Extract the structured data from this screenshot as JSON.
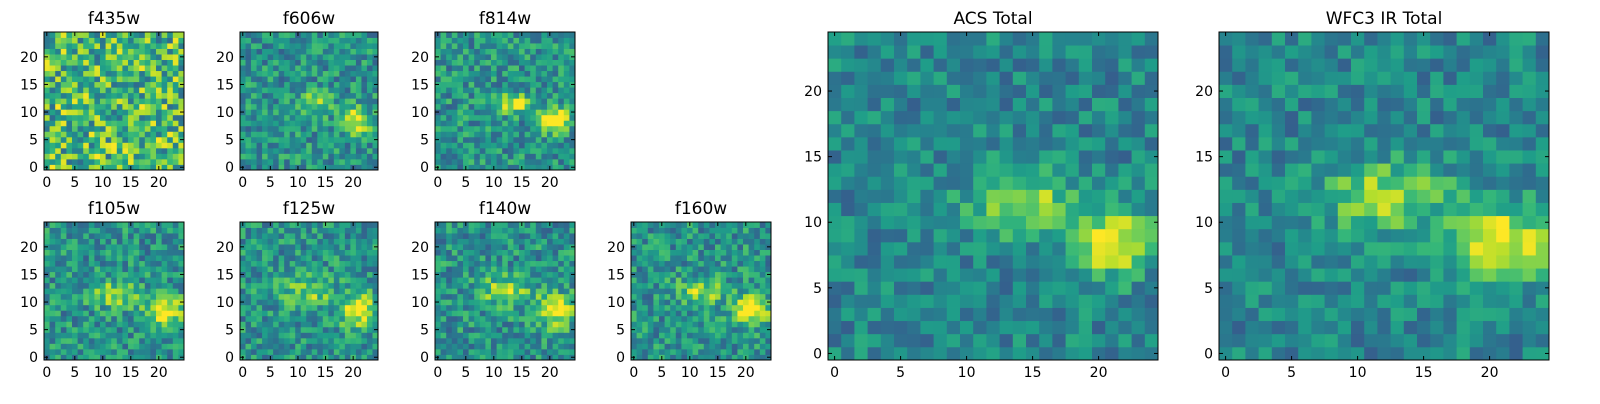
{
  "chart_data": [
    {
      "type": "heatmap",
      "title": "f435w",
      "grid": [
        25,
        25
      ],
      "xticks": [
        "0",
        "5",
        "10",
        "15",
        "20"
      ],
      "yticks": [
        "0",
        "5",
        "10",
        "15",
        "20"
      ],
      "colormap": "viridis",
      "features": []
    },
    {
      "type": "heatmap",
      "title": "f606w",
      "grid": [
        25,
        25
      ],
      "xticks": [
        "0",
        "5",
        "10",
        "15",
        "20"
      ],
      "yticks": [
        "0",
        "5",
        "10",
        "15",
        "20"
      ],
      "colormap": "viridis",
      "features": [
        {
          "x": 20.5,
          "y": 8.5,
          "sx": 1.7,
          "sy": 1.6,
          "amp": 0.55
        },
        {
          "x": 13,
          "y": 11.5,
          "sx": 2.5,
          "sy": 1.4,
          "amp": 0.3
        }
      ]
    },
    {
      "type": "heatmap",
      "title": "f814w",
      "grid": [
        25,
        25
      ],
      "xticks": [
        "0",
        "5",
        "10",
        "15",
        "20"
      ],
      "yticks": [
        "0",
        "5",
        "10",
        "15",
        "20"
      ],
      "colormap": "viridis",
      "features": [
        {
          "x": 21,
          "y": 8.5,
          "sx": 1.7,
          "sy": 1.5,
          "amp": 0.7
        },
        {
          "x": 13.5,
          "y": 11.5,
          "sx": 2.2,
          "sy": 1.2,
          "amp": 0.45
        }
      ]
    },
    {
      "type": "heatmap",
      "title": "f105w",
      "grid": [
        25,
        25
      ],
      "xticks": [
        "0",
        "5",
        "10",
        "15",
        "20"
      ],
      "yticks": [
        "0",
        "5",
        "10",
        "15",
        "20"
      ],
      "colormap": "viridis",
      "features": [
        {
          "x": 21,
          "y": 8.5,
          "sx": 2.4,
          "sy": 2.0,
          "amp": 0.5
        },
        {
          "x": 12,
          "y": 11.5,
          "sx": 3.0,
          "sy": 1.6,
          "amp": 0.35
        }
      ]
    },
    {
      "type": "heatmap",
      "title": "f125w",
      "grid": [
        25,
        25
      ],
      "xticks": [
        "0",
        "5",
        "10",
        "15",
        "20"
      ],
      "yticks": [
        "0",
        "5",
        "10",
        "15",
        "20"
      ],
      "colormap": "viridis",
      "features": [
        {
          "x": 21,
          "y": 8.5,
          "sx": 2.3,
          "sy": 2.0,
          "amp": 0.5
        },
        {
          "x": 12,
          "y": 12,
          "sx": 3.2,
          "sy": 1.8,
          "amp": 0.3
        }
      ]
    },
    {
      "type": "heatmap",
      "title": "f140w",
      "grid": [
        25,
        25
      ],
      "xticks": [
        "0",
        "5",
        "10",
        "15",
        "20"
      ],
      "yticks": [
        "0",
        "5",
        "10",
        "15",
        "20"
      ],
      "colormap": "viridis",
      "features": [
        {
          "x": 21,
          "y": 8.5,
          "sx": 2.4,
          "sy": 2.0,
          "amp": 0.5
        },
        {
          "x": 12,
          "y": 12,
          "sx": 3.2,
          "sy": 1.8,
          "amp": 0.35
        }
      ]
    },
    {
      "type": "heatmap",
      "title": "f160w",
      "grid": [
        25,
        25
      ],
      "xticks": [
        "0",
        "5",
        "10",
        "15",
        "20"
      ],
      "yticks": [
        "0",
        "5",
        "10",
        "15",
        "20"
      ],
      "colormap": "viridis",
      "features": [
        {
          "x": 21,
          "y": 8.5,
          "sx": 2.3,
          "sy": 1.9,
          "amp": 0.55
        },
        {
          "x": 12,
          "y": 12,
          "sx": 3.0,
          "sy": 1.6,
          "amp": 0.35
        }
      ]
    },
    {
      "type": "heatmap",
      "title": "ACS Total",
      "grid": [
        25,
        25
      ],
      "xticks": [
        "0",
        "5",
        "10",
        "15",
        "20"
      ],
      "yticks": [
        "0",
        "5",
        "10",
        "15",
        "20"
      ],
      "colormap": "viridis",
      "features": [
        {
          "x": 21,
          "y": 8.5,
          "sx": 1.9,
          "sy": 1.7,
          "amp": 0.6
        },
        {
          "x": 14,
          "y": 11.5,
          "sx": 2.6,
          "sy": 1.6,
          "amp": 0.45
        }
      ]
    },
    {
      "type": "heatmap",
      "title": "WFC3 IR Total",
      "grid": [
        25,
        25
      ],
      "xticks": [
        "0",
        "5",
        "10",
        "15",
        "20"
      ],
      "yticks": [
        "0",
        "5",
        "10",
        "15",
        "20"
      ],
      "colormap": "viridis",
      "features": [
        {
          "x": 21,
          "y": 8.5,
          "sx": 2.6,
          "sy": 2.0,
          "amp": 0.55
        },
        {
          "x": 12,
          "y": 12,
          "sx": 3.4,
          "sy": 1.8,
          "amp": 0.4
        }
      ]
    }
  ]
}
